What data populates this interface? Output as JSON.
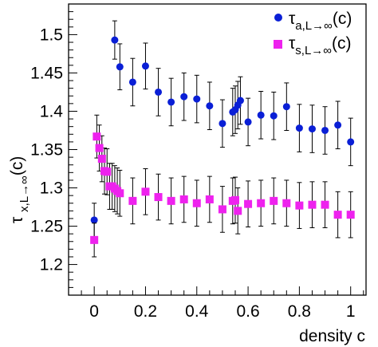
{
  "chart_data": {
    "type": "scatter",
    "xlabel": "density c",
    "ylabel": "τx,L→∞(c)",
    "xlim": [
      -0.1,
      1.06
    ],
    "ylim": [
      1.16,
      1.54
    ],
    "xticks": [
      0,
      0.2,
      0.4,
      0.6,
      0.8,
      1
    ],
    "xtick_labels": [
      "0",
      "0.2",
      "0.4",
      "0.6",
      "0.8",
      "1"
    ],
    "yticks": [
      1.2,
      1.25,
      1.3,
      1.35,
      1.4,
      1.45,
      1.5
    ],
    "ytick_labels": [
      "1.2",
      "1.25",
      "1.3",
      "1.35",
      "1.4",
      "1.45",
      "1.5"
    ],
    "grid": false,
    "legend_position": "top-right",
    "series": [
      {
        "name": "τa,L→∞(c)",
        "legend_main": "τ",
        "legend_sub": "a,L→∞",
        "legend_tail": "(c)",
        "marker": "circle",
        "color": "#0a1fd6",
        "points": [
          {
            "x": 0.0,
            "y": 1.258,
            "err": 0.022
          },
          {
            "x": 0.08,
            "y": 1.493,
            "err": 0.025
          },
          {
            "x": 0.1,
            "y": 1.458,
            "err": 0.03
          },
          {
            "x": 0.15,
            "y": 1.438,
            "err": 0.031
          },
          {
            "x": 0.2,
            "y": 1.459,
            "err": 0.03
          },
          {
            "x": 0.25,
            "y": 1.425,
            "err": 0.031
          },
          {
            "x": 0.3,
            "y": 1.412,
            "err": 0.031
          },
          {
            "x": 0.35,
            "y": 1.419,
            "err": 0.031
          },
          {
            "x": 0.4,
            "y": 1.416,
            "err": 0.031
          },
          {
            "x": 0.45,
            "y": 1.407,
            "err": 0.031
          },
          {
            "x": 0.5,
            "y": 1.384,
            "err": 0.031
          },
          {
            "x": 0.54,
            "y": 1.399,
            "err": 0.031
          },
          {
            "x": 0.55,
            "y": 1.402,
            "err": 0.031
          },
          {
            "x": 0.56,
            "y": 1.408,
            "err": 0.031
          },
          {
            "x": 0.57,
            "y": 1.414,
            "err": 0.031
          },
          {
            "x": 0.6,
            "y": 1.386,
            "err": 0.031
          },
          {
            "x": 0.65,
            "y": 1.395,
            "err": 0.031
          },
          {
            "x": 0.7,
            "y": 1.394,
            "err": 0.031
          },
          {
            "x": 0.75,
            "y": 1.406,
            "err": 0.031
          },
          {
            "x": 0.8,
            "y": 1.378,
            "err": 0.031
          },
          {
            "x": 0.85,
            "y": 1.377,
            "err": 0.031
          },
          {
            "x": 0.9,
            "y": 1.375,
            "err": 0.031
          },
          {
            "x": 0.95,
            "y": 1.382,
            "err": 0.031
          },
          {
            "x": 1.0,
            "y": 1.36,
            "err": 0.031
          }
        ]
      },
      {
        "name": "τs,L→∞(c)",
        "legend_main": "τ",
        "legend_sub": "s,L→∞",
        "legend_tail": "(c)",
        "marker": "square",
        "color": "#ee22ee",
        "points": [
          {
            "x": 0.0,
            "y": 1.232,
            "err": 0.022
          },
          {
            "x": 0.01,
            "y": 1.367,
            "err": 0.028
          },
          {
            "x": 0.02,
            "y": 1.352,
            "err": 0.03
          },
          {
            "x": 0.03,
            "y": 1.338,
            "err": 0.03
          },
          {
            "x": 0.04,
            "y": 1.322,
            "err": 0.03
          },
          {
            "x": 0.05,
            "y": 1.321,
            "err": 0.03
          },
          {
            "x": 0.06,
            "y": 1.302,
            "err": 0.03
          },
          {
            "x": 0.07,
            "y": 1.302,
            "err": 0.03
          },
          {
            "x": 0.08,
            "y": 1.299,
            "err": 0.03
          },
          {
            "x": 0.09,
            "y": 1.296,
            "err": 0.03
          },
          {
            "x": 0.1,
            "y": 1.293,
            "err": 0.03
          },
          {
            "x": 0.15,
            "y": 1.283,
            "err": 0.03
          },
          {
            "x": 0.2,
            "y": 1.295,
            "err": 0.03
          },
          {
            "x": 0.25,
            "y": 1.288,
            "err": 0.03
          },
          {
            "x": 0.3,
            "y": 1.283,
            "err": 0.03
          },
          {
            "x": 0.35,
            "y": 1.285,
            "err": 0.03
          },
          {
            "x": 0.4,
            "y": 1.28,
            "err": 0.03
          },
          {
            "x": 0.45,
            "y": 1.285,
            "err": 0.03
          },
          {
            "x": 0.5,
            "y": 1.272,
            "err": 0.03
          },
          {
            "x": 0.54,
            "y": 1.283,
            "err": 0.03
          },
          {
            "x": 0.55,
            "y": 1.284,
            "err": 0.03
          },
          {
            "x": 0.56,
            "y": 1.27,
            "err": 0.03
          },
          {
            "x": 0.6,
            "y": 1.279,
            "err": 0.03
          },
          {
            "x": 0.65,
            "y": 1.28,
            "err": 0.03
          },
          {
            "x": 0.7,
            "y": 1.283,
            "err": 0.03
          },
          {
            "x": 0.75,
            "y": 1.28,
            "err": 0.03
          },
          {
            "x": 0.8,
            "y": 1.277,
            "err": 0.03
          },
          {
            "x": 0.85,
            "y": 1.278,
            "err": 0.03
          },
          {
            "x": 0.9,
            "y": 1.278,
            "err": 0.03
          },
          {
            "x": 0.95,
            "y": 1.265,
            "err": 0.03
          },
          {
            "x": 1.0,
            "y": 1.265,
            "err": 0.03
          }
        ]
      }
    ]
  }
}
